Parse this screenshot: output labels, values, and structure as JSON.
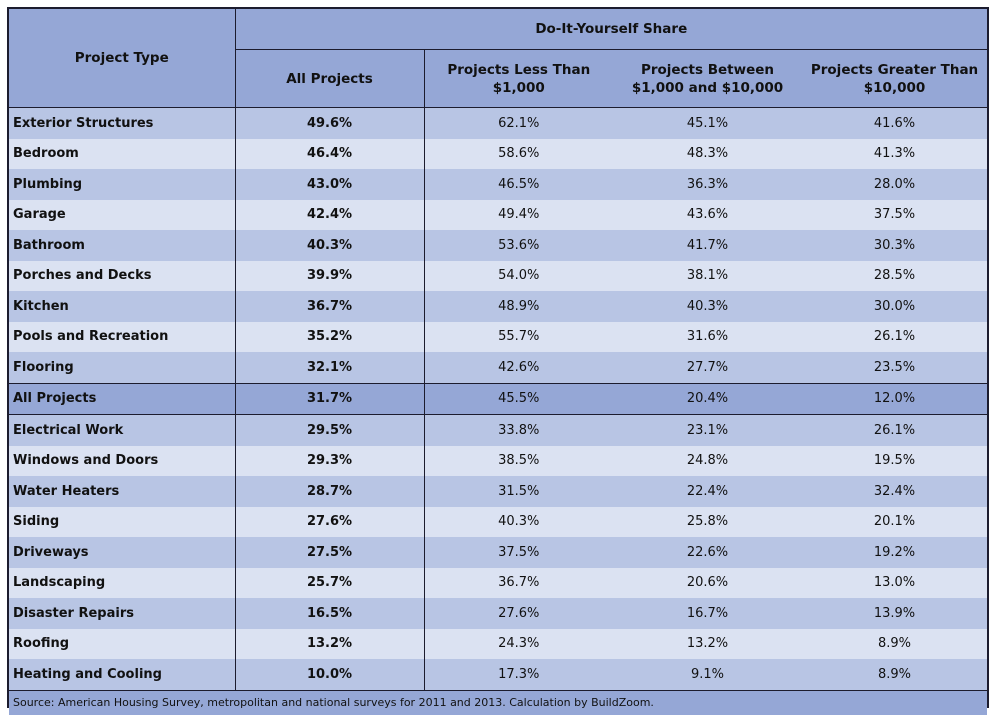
{
  "header": {
    "project_type": "Project Type",
    "group": "Do-It-Yourself Share",
    "col_all": "All Projects",
    "col_lt": "Projects Less Than $1,000",
    "col_mid": "Projects Between $1,000 and $10,000",
    "col_gt": "Projects Greater Than $10,000"
  },
  "rows": [
    {
      "name": "Exterior Structures",
      "all": "49.6%",
      "lt": "62.1%",
      "mid": "45.1%",
      "gt": "41.6%"
    },
    {
      "name": "Bedroom",
      "all": "46.4%",
      "lt": "58.6%",
      "mid": "48.3%",
      "gt": "41.3%"
    },
    {
      "name": "Plumbing",
      "all": "43.0%",
      "lt": "46.5%",
      "mid": "36.3%",
      "gt": "28.0%"
    },
    {
      "name": "Garage",
      "all": "42.4%",
      "lt": "49.4%",
      "mid": "43.6%",
      "gt": "37.5%"
    },
    {
      "name": "Bathroom",
      "all": "40.3%",
      "lt": "53.6%",
      "mid": "41.7%",
      "gt": "30.3%"
    },
    {
      "name": "Porches and Decks",
      "all": "39.9%",
      "lt": "54.0%",
      "mid": "38.1%",
      "gt": "28.5%"
    },
    {
      "name": "Kitchen",
      "all": "36.7%",
      "lt": "48.9%",
      "mid": "40.3%",
      "gt": "30.0%"
    },
    {
      "name": "Pools and Recreation",
      "all": "35.2%",
      "lt": "55.7%",
      "mid": "31.6%",
      "gt": "26.1%"
    },
    {
      "name": "Flooring",
      "all": "32.1%",
      "lt": "42.6%",
      "mid": "27.7%",
      "gt": "23.5%"
    },
    {
      "name": "All Projects",
      "all": "31.7%",
      "lt": "45.5%",
      "mid": "20.4%",
      "gt": "12.0%",
      "total": true
    },
    {
      "name": "Electrical Work",
      "all": "29.5%",
      "lt": "33.8%",
      "mid": "23.1%",
      "gt": "26.1%"
    },
    {
      "name": "Windows and Doors",
      "all": "29.3%",
      "lt": "38.5%",
      "mid": "24.8%",
      "gt": "19.5%"
    },
    {
      "name": "Water Heaters",
      "all": "28.7%",
      "lt": "31.5%",
      "mid": "22.4%",
      "gt": "32.4%"
    },
    {
      "name": "Siding",
      "all": "27.6%",
      "lt": "40.3%",
      "mid": "25.8%",
      "gt": "20.1%"
    },
    {
      "name": "Driveways",
      "all": "27.5%",
      "lt": "37.5%",
      "mid": "22.6%",
      "gt": "19.2%"
    },
    {
      "name": "Landscaping",
      "all": "25.7%",
      "lt": "36.7%",
      "mid": "20.6%",
      "gt": "13.0%"
    },
    {
      "name": "Disaster Repairs",
      "all": "16.5%",
      "lt": "27.6%",
      "mid": "16.7%",
      "gt": "13.9%"
    },
    {
      "name": "Roofing",
      "all": "13.2%",
      "lt": "24.3%",
      "mid": "13.2%",
      "gt": "8.9%"
    },
    {
      "name": "Heating and Cooling",
      "all": "10.0%",
      "lt": "17.3%",
      "mid": "9.1%",
      "gt": "8.9%"
    }
  ],
  "footer": {
    "source": "Source: American Housing Survey, metropolitan and national surveys for 2011 and 2013. Calculation by BuildZoom."
  },
  "colors": {
    "header_bg": "#95a7d6",
    "row_dark": "#b8c5e4",
    "row_light": "#dbe2f2",
    "border": "#1c1c2e"
  }
}
